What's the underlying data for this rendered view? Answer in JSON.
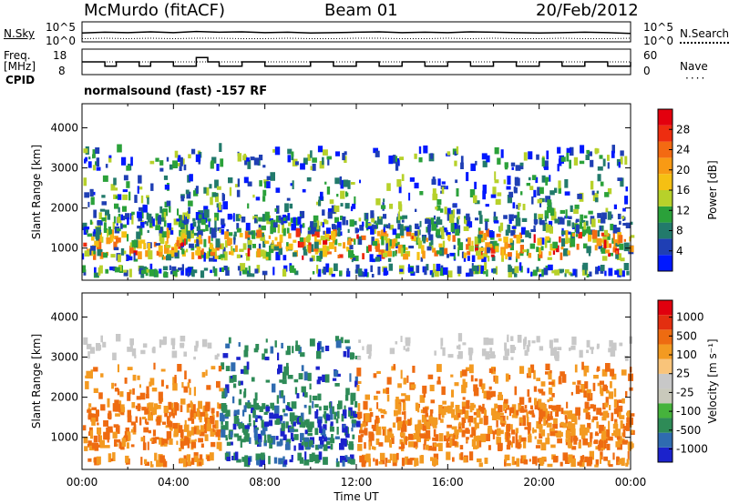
{
  "header": {
    "station": "McMurdo (fitACF)",
    "beam": "Beam 01",
    "date": "20/Feb/2012"
  },
  "noise_panel": {
    "left_label": "N.Sky",
    "right_label": "N.Search",
    "left_ticks": [
      "10^5",
      "10^0"
    ],
    "right_ticks": [
      "10^5",
      "10^0"
    ]
  },
  "freq_panel": {
    "left_label_1": "Freq.",
    "left_label_2": "[MHz]",
    "left_ticks": [
      "18",
      "8"
    ],
    "right_label": "Nave",
    "right_ticks": [
      "60",
      "0"
    ]
  },
  "cpid": {
    "label": "CPID",
    "text": "normalsound (fast) -157 RF"
  },
  "colors": {
    "power_scale": [
      "#0018ff",
      "#1f3fb4",
      "#227a6b",
      "#2ba13a",
      "#b7d12a",
      "#f5c013",
      "#f89a14",
      "#f36a12",
      "#ee2d10",
      "#e3000e"
    ],
    "velocity_scale": [
      "#1b22cc",
      "#2f6bb0",
      "#2e8b57",
      "#46b33c",
      "#c9c9bb",
      "#c8c8c8",
      "#f9c47a",
      "#f39a21",
      "#ee6b11",
      "#e32f10",
      "#e0000e"
    ]
  },
  "chart_data": [
    {
      "type": "line",
      "panel": "noise",
      "series": [
        {
          "name": "N.Sky",
          "style": "solid",
          "values": [
            2.2,
            2.4,
            2.3,
            2.5,
            2.3,
            2.6,
            2.4,
            2.5,
            2.3,
            2.4,
            2.2,
            2.3,
            2.4,
            2.5,
            2.3,
            2.4,
            2.3,
            2.5,
            2.4,
            2.3,
            2.2,
            2.3,
            2.4,
            2.3,
            2.1
          ]
        },
        {
          "name": "N.Search",
          "style": "dotted",
          "values": [
            0.8,
            0.9,
            0.8,
            0.9,
            0.8,
            0.9,
            0.9,
            0.8,
            0.8,
            0.9,
            0.8,
            0.8,
            0.9,
            0.9,
            0.8,
            0.8,
            0.9,
            0.8,
            0.9,
            0.8,
            0.8,
            0.9,
            0.8,
            0.8,
            0.9
          ]
        }
      ],
      "x": [
        0,
        1,
        2,
        3,
        4,
        5,
        6,
        7,
        8,
        9,
        10,
        11,
        12,
        13,
        14,
        15,
        16,
        17,
        18,
        19,
        20,
        21,
        22,
        23,
        24
      ]
    },
    {
      "type": "line",
      "panel": "frequency",
      "series": [
        {
          "name": "Freq.",
          "style": "solid",
          "x": [
            0,
            1,
            1.5,
            2.5,
            3,
            4,
            5,
            5.5,
            6,
            7,
            8,
            10,
            11,
            12,
            13,
            14,
            15,
            16,
            17,
            18,
            19,
            20,
            21,
            22,
            23,
            24
          ],
          "values": [
            12,
            10,
            12,
            10,
            12,
            10,
            14,
            12,
            10,
            12,
            10,
            12,
            10,
            12,
            10,
            12,
            10,
            12,
            10,
            12,
            10,
            12,
            10,
            12,
            10,
            12
          ]
        },
        {
          "name": "Nave",
          "style": "dotted",
          "x": [
            0,
            24
          ],
          "values": [
            30,
            30
          ]
        }
      ]
    },
    {
      "type": "heatmap",
      "panel": "power",
      "xlabel": "",
      "ylabel": "Slant Range [km]",
      "xlim": [
        0,
        24
      ],
      "ylim": [
        200,
        4600
      ],
      "yticks": [
        1000,
        2000,
        3000,
        4000
      ],
      "colorbar": {
        "label": "Power [dB]",
        "ticks": [
          4,
          8,
          12,
          16,
          20,
          24,
          28
        ],
        "range": [
          0,
          32
        ]
      }
    },
    {
      "type": "heatmap",
      "panel": "velocity",
      "xlabel": "Time UT",
      "ylabel": "Slant Range [km]",
      "xlim": [
        0,
        24
      ],
      "ylim": [
        200,
        4600
      ],
      "yticks": [
        1000,
        2000,
        3000,
        4000
      ],
      "xticks": [
        "00:00",
        "04:00",
        "08:00",
        "12:00",
        "16:00",
        "20:00",
        "00:00"
      ],
      "colorbar": {
        "label": "Velocity [m s⁻¹]",
        "ticks": [
          "1000",
          "500",
          "100",
          "25",
          "-25",
          "-100",
          "-500",
          "-1000"
        ]
      }
    }
  ]
}
